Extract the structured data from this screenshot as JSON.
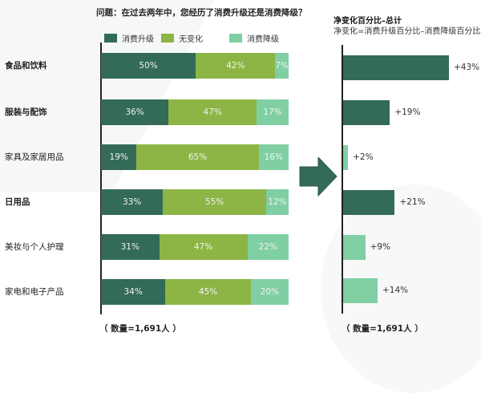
{
  "colors": {
    "upgrade": "#336b57",
    "no_change": "#8cb545",
    "downgrade": "#7fcfa3",
    "axis": "#222222",
    "arrow": "#336b57"
  },
  "left_chart": {
    "title": "问题：在过去两年中，您经历了消费升级还是消费降级？",
    "legend": [
      {
        "label": "消费升级",
        "key": "upgrade"
      },
      {
        "label": "无变化",
        "key": "no_change"
      },
      {
        "label": "消费降级",
        "key": "downgrade"
      }
    ],
    "rows": [
      {
        "label": "食品和饮料",
        "bold": true,
        "upgrade": "50%",
        "no_change": "42%",
        "downgrade": "7%"
      },
      {
        "label": "服装与配饰",
        "bold": true,
        "upgrade": "36%",
        "no_change": "47%",
        "downgrade": "17%"
      },
      {
        "label": "家具及家居用品",
        "bold": false,
        "upgrade": "19%",
        "no_change": "65%",
        "downgrade": "16%"
      },
      {
        "label": "日用品",
        "bold": true,
        "upgrade": "33%",
        "no_change": "55%",
        "downgrade": "12%"
      },
      {
        "label": "美妆与个人护理",
        "bold": false,
        "upgrade": "31%",
        "no_change": "47%",
        "downgrade": "22%"
      },
      {
        "label": "家电和电子产品",
        "bold": false,
        "upgrade": "34%",
        "no_change": "45%",
        "downgrade": "20%"
      }
    ],
    "note": "（ 数量=1,691人 ）"
  },
  "right_chart": {
    "title": "净变化百分比–总计",
    "subtitle": "净变化=消费升级百分比–消费降级百分比",
    "rows": [
      {
        "label": "+43%",
        "value": 43,
        "color": "upgrade"
      },
      {
        "label": "+19%",
        "value": 19,
        "color": "upgrade"
      },
      {
        "label": "+2%",
        "value": 2,
        "color": "downgrade"
      },
      {
        "label": "+21%",
        "value": 21,
        "color": "upgrade"
      },
      {
        "label": "+9%",
        "value": 9,
        "color": "downgrade"
      },
      {
        "label": "+14%",
        "value": 14,
        "color": "downgrade"
      }
    ],
    "note": "（ 数量=1,691人 ）"
  },
  "chart_data": [
    {
      "type": "bar",
      "orientation": "horizontal",
      "stacked": true,
      "title": "问题：在过去两年中，您经历了消费升级还是消费降级？",
      "categories": [
        "食品和饮料",
        "服装与配饰",
        "家具及家居用品",
        "日用品",
        "美妆与个人护理",
        "家电和电子产品"
      ],
      "series": [
        {
          "name": "消费升级",
          "values": [
            50,
            36,
            19,
            33,
            31,
            34
          ],
          "color": "#336b57"
        },
        {
          "name": "无变化",
          "values": [
            42,
            47,
            65,
            55,
            47,
            45
          ],
          "color": "#8cb545"
        },
        {
          "name": "消费降级",
          "values": [
            7,
            17,
            16,
            12,
            22,
            20
          ],
          "color": "#7fcfa3"
        }
      ],
      "unit": "%",
      "xlim": [
        0,
        100
      ],
      "legend_position": "top",
      "grid": false,
      "annotation": "（数量=1,691人）"
    },
    {
      "type": "bar",
      "orientation": "horizontal",
      "title": "净变化百分比–总计",
      "subtitle": "净变化=消费升级百分比–消费降级百分比",
      "categories": [
        "食品和饮料",
        "服装与配饰",
        "家具及家居用品",
        "日用品",
        "美妆与个人护理",
        "家电和电子产品"
      ],
      "values": [
        43,
        19,
        2,
        21,
        9,
        14
      ],
      "value_labels": [
        "+43%",
        "+19%",
        "+2%",
        "+21%",
        "+9%",
        "+14%"
      ],
      "bar_colors": [
        "#336b57",
        "#336b57",
        "#7fcfa3",
        "#336b57",
        "#7fcfa3",
        "#7fcfa3"
      ],
      "unit": "%",
      "grid": false,
      "annotation": "（数量=1,691人）"
    }
  ]
}
